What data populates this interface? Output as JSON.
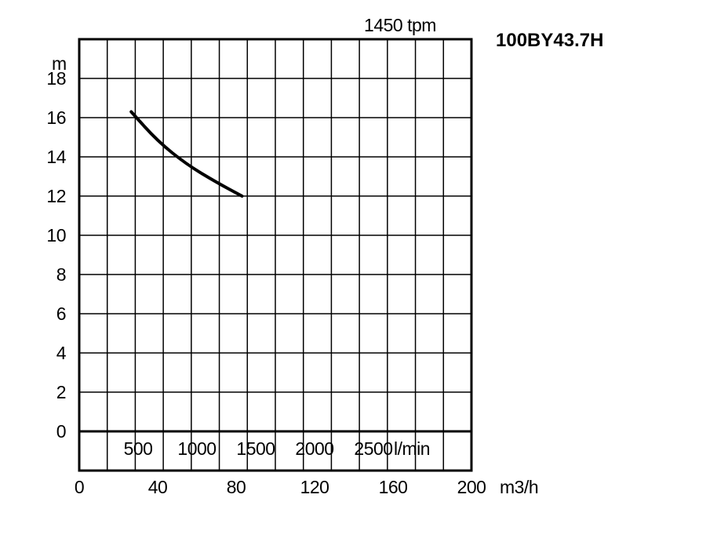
{
  "chart_data": {
    "type": "line",
    "title": "1450 tpm",
    "model": "100BY43.7H",
    "ylabel": "m",
    "xlabel": "m3/h",
    "secondary_xlabel": "l/min",
    "xlim": [
      0,
      200
    ],
    "ylim": [
      0,
      18
    ],
    "y_ticks": [
      "0",
      "2",
      "4",
      "6",
      "8",
      "10",
      "12",
      "14",
      "16",
      "18"
    ],
    "x_ticks": [
      "0",
      "40",
      "80",
      "120",
      "160",
      "200"
    ],
    "secondary_x_ticks": [
      "500",
      "1000",
      "1500",
      "2000",
      "2500"
    ],
    "grid": true,
    "series": [
      {
        "x": [
          26.5,
          40,
          55,
          70,
          83
        ],
        "y": [
          16.3,
          14.8,
          13.6,
          12.7,
          12.0
        ]
      }
    ]
  }
}
